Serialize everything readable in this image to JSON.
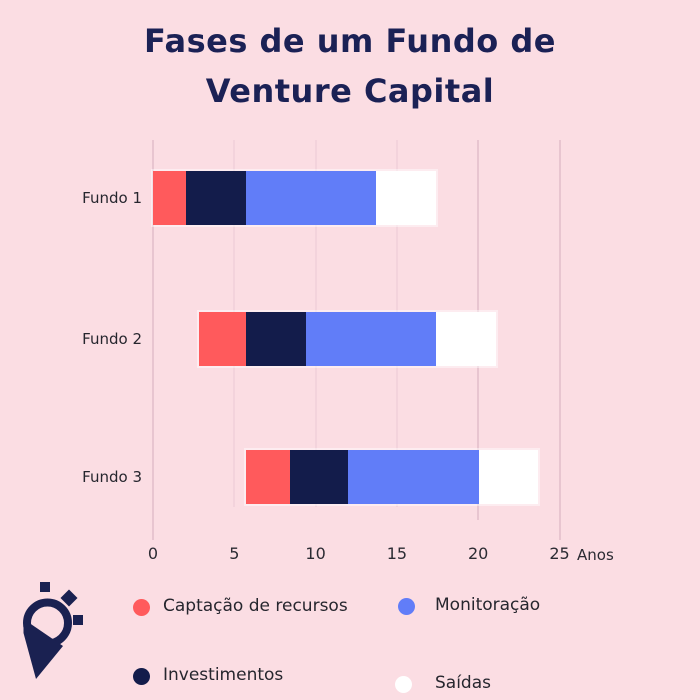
{
  "title": {
    "line1": "Fases de um Fundo de",
    "line2": "Venture Capital"
  },
  "colors": {
    "background": "#FBDDE3",
    "title_text": "#1B2155",
    "bar_red": "#FF5A5C",
    "bar_navy": "#131C4B",
    "bar_blue": "#617DF8",
    "bar_white": "#FFFFFF",
    "gridline": "#F3D3DC",
    "gridline_strong": "#E8C5D0",
    "axis_text": "#2B2B33",
    "logo_navy": "#1A2151"
  },
  "chart_data": {
    "type": "bar",
    "orientation": "horizontal",
    "stacked": true,
    "title": "Fases de um Fundo de Venture Capital",
    "categories": [
      "Fundo 1",
      "Fundo 2",
      "Fundo 3"
    ],
    "bar_start_year": [
      0,
      2.85,
      5.7
    ],
    "series": [
      {
        "name": "Captação de recursos",
        "slug": "captacao-de-recursos",
        "color_key": "bar_red",
        "values": [
          2.05,
          2.85,
          2.75
        ]
      },
      {
        "name": "Investimentos",
        "slug": "investimentos",
        "color_key": "bar_navy",
        "values": [
          3.65,
          3.7,
          3.55
        ]
      },
      {
        "name": "Monitoração",
        "slug": "monitoracao",
        "color_key": "bar_blue",
        "values": [
          8.0,
          8.0,
          8.05
        ]
      },
      {
        "name": "Saídas",
        "slug": "saidas",
        "color_key": "bar_white",
        "values": [
          3.7,
          3.7,
          3.65
        ]
      }
    ],
    "x_ticks": [
      0,
      5,
      10,
      15,
      20,
      25
    ],
    "x_axis_label": "Anos",
    "xlim": [
      0,
      25
    ],
    "grid": "vertical-light"
  },
  "legend": {
    "items": [
      {
        "label": "Captação de recursos",
        "color_key": "bar_red"
      },
      {
        "label": "Monitoração",
        "color_key": "bar_blue"
      },
      {
        "label": "Investimentos",
        "color_key": "bar_navy"
      },
      {
        "label": "Saídas",
        "color_key": "bar_white"
      }
    ]
  },
  "icons": {
    "logo": "p-speech-bubble-with-sparkles-logo"
  }
}
